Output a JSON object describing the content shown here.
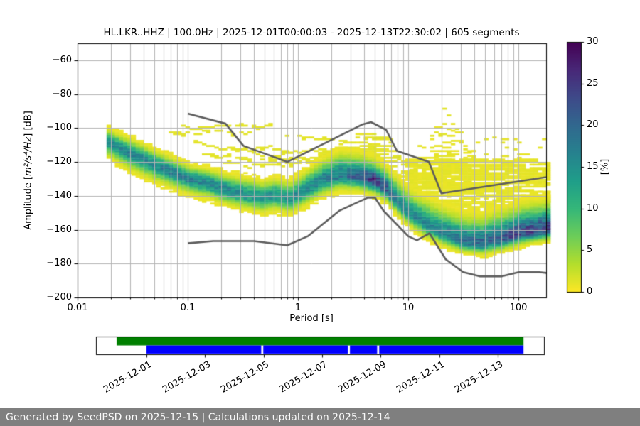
{
  "title": "HL.LKR..HHZ | 100.0Hz | 2025-12-01T00:00:03 - 2025-12-13T22:30:02 | 605 segments",
  "footer": {
    "text": "Generated by SeedPSD on 2025-12-15 | Calculations updated on 2025-12-14"
  },
  "chart_data": {
    "type": "heatmap",
    "title": "HL.LKR..HHZ | 100.0Hz | 2025-12-01T00:00:03 - 2025-12-13T22:30:02 | 605 segments",
    "xlabel": "Period [s]",
    "ylabel_prefix": "Amplitude [",
    "ylabel_math": "m²/s⁴/Hz",
    "ylabel_suffix": "] [dB]",
    "xscale": "log",
    "xlim": [
      0.01,
      179
    ],
    "ylim": [
      -200,
      -50
    ],
    "grid": true,
    "x_ticks": [
      0.01,
      0.1,
      1,
      10,
      100
    ],
    "x_tick_labels": [
      "0.01",
      "0.1",
      "1",
      "10",
      "100"
    ],
    "y_ticks": [
      -200,
      -180,
      -160,
      -140,
      -120,
      -100,
      -80,
      -60
    ],
    "y_tick_labels": [
      "−200",
      "−180",
      "−160",
      "−140",
      "−120",
      "−100",
      "−80",
      "−60"
    ],
    "colorbar": {
      "label": "[%]",
      "min": 0,
      "max": 30,
      "ticks": [
        0,
        5,
        10,
        15,
        20,
        25,
        30
      ],
      "tick_labels": [
        "0",
        "5",
        "10",
        "15",
        "20",
        "25",
        "30"
      ],
      "colormap": "viridis_r"
    },
    "bins": {
      "periods_per_octave": 8,
      "db_bin_width": 1,
      "period_min": 0.018,
      "period_max": 179
    },
    "histogram_band": {
      "comment": "main PPSD probability band: [period s, mode dB, sigma above, sigma below, peak %]",
      "points": [
        [
          0.018,
          -108.0,
          3.5,
          4.0,
          16
        ],
        [
          0.028,
          -114.5,
          4.0,
          4.5,
          16
        ],
        [
          0.045,
          -120.5,
          4.0,
          4.5,
          16
        ],
        [
          0.07,
          -126.0,
          3.8,
          4.2,
          17
        ],
        [
          0.1,
          -130.0,
          3.6,
          4.0,
          17
        ],
        [
          0.15,
          -132.5,
          3.8,
          4.0,
          17
        ],
        [
          0.22,
          -136.5,
          4.2,
          4.0,
          16
        ],
        [
          0.32,
          -139.0,
          4.5,
          4.0,
          15
        ],
        [
          0.45,
          -141.0,
          4.5,
          4.0,
          15
        ],
        [
          0.6,
          -139.5,
          4.5,
          4.0,
          15
        ],
        [
          0.8,
          -141.5,
          4.5,
          4.0,
          15
        ],
        [
          1.1,
          -136.5,
          5.0,
          4.2,
          16
        ],
        [
          1.6,
          -130.5,
          5.5,
          4.2,
          17
        ],
        [
          2.3,
          -127.5,
          6.0,
          4.0,
          18
        ],
        [
          3.4,
          -128.5,
          6.0,
          3.8,
          21
        ],
        [
          4.8,
          -131.0,
          5.5,
          3.6,
          26
        ],
        [
          6.2,
          -136.0,
          5.5,
          3.6,
          21
        ],
        [
          8.0,
          -144.5,
          6.0,
          3.6,
          17
        ],
        [
          10.5,
          -151.5,
          6.5,
          3.6,
          16
        ],
        [
          14.0,
          -157.0,
          7.0,
          3.6,
          16
        ],
        [
          20.0,
          -162.0,
          7.0,
          3.4,
          17
        ],
        [
          30.0,
          -166.5,
          7.0,
          3.2,
          19
        ],
        [
          45.0,
          -167.5,
          7.0,
          3.2,
          20
        ],
        [
          70.0,
          -165.0,
          7.5,
          3.2,
          22
        ],
        [
          110.0,
          -161.5,
          7.5,
          3.0,
          24
        ],
        [
          179.0,
          -159.5,
          7.5,
          3.0,
          24
        ]
      ]
    },
    "noise_models": {
      "color": "#5c5c5c",
      "nhnm": [
        [
          0.1,
          -91.5
        ],
        [
          0.22,
          -97.4
        ],
        [
          0.32,
          -110.5
        ],
        [
          0.8,
          -120.0
        ],
        [
          3.8,
          -98.0
        ],
        [
          4.6,
          -96.5
        ],
        [
          6.3,
          -101.0
        ],
        [
          7.9,
          -113.5
        ],
        [
          15.4,
          -120.0
        ],
        [
          20.0,
          -138.5
        ],
        [
          354.8,
          -126.0
        ]
      ],
      "nlnm": [
        [
          0.1,
          -168.0
        ],
        [
          0.17,
          -166.7
        ],
        [
          0.4,
          -166.7
        ],
        [
          0.8,
          -169.2
        ],
        [
          1.24,
          -163.7
        ],
        [
          2.4,
          -148.6
        ],
        [
          4.3,
          -141.1
        ],
        [
          5.0,
          -141.1
        ],
        [
          6.0,
          -149.0
        ],
        [
          10.0,
          -163.8
        ],
        [
          12.0,
          -166.2
        ],
        [
          15.6,
          -162.1
        ],
        [
          21.9,
          -177.5
        ],
        [
          31.6,
          -185.0
        ],
        [
          45.0,
          -187.5
        ],
        [
          70.0,
          -187.5
        ],
        [
          101.0,
          -185.0
        ],
        [
          154.0,
          -185.0
        ],
        [
          328.0,
          -187.5
        ]
      ]
    },
    "scatter_clouds": [
      {
        "name": "mid-period-cloud",
        "p_range": [
          1.2,
          11
        ],
        "top_db": -104,
        "nhnm_offset": -3,
        "band_sigma_mult": 2.2,
        "density": 0.45,
        "level_pct": 1.1
      },
      {
        "name": "storm-peak",
        "p_range": [
          8,
          65
        ],
        "apex_period": 21,
        "apex_db": -87,
        "slope_db_per_decade": 95,
        "floor_db": -136,
        "density_top": 0.12,
        "density_bottom": 0.55,
        "level_pct": 1.0
      },
      {
        "name": "long-period-cloud",
        "p_range": [
          9,
          179
        ],
        "top_db": -119,
        "band_sigma_mult": 2.0,
        "density": 0.5,
        "level_pct": 1.0
      },
      {
        "name": "long-period-sparse",
        "p_range": [
          14,
          179
        ],
        "top_db": -105,
        "bottom_db": -119,
        "density": 0.08,
        "level_pct": 1.0
      }
    ],
    "wisps": {
      "comment": "thin low-probability yellow traces above the main band: [p0, p1, start dB, drift dB]",
      "curves": [
        [
          0.07,
          0.35,
          -103,
          3
        ],
        [
          0.1,
          0.85,
          -109,
          -5
        ],
        [
          0.13,
          1.3,
          -116,
          -4
        ],
        [
          0.2,
          2.2,
          -121,
          4
        ],
        [
          0.35,
          2.8,
          -113,
          -3
        ],
        [
          0.09,
          0.55,
          -99,
          -5
        ],
        [
          0.55,
          3.2,
          -119,
          5
        ],
        [
          0.75,
          2.0,
          -106,
          2
        ]
      ],
      "level_pct": 1.2
    }
  },
  "timeline": {
    "axis_day_range": [
      -1.725,
      13.58
    ],
    "tick_days": [
      0,
      2,
      4,
      6,
      8,
      10,
      12
    ],
    "tick_labels": [
      "2025-12-01",
      "2025-12-03",
      "2025-12-05",
      "2025-12-07",
      "2025-12-09",
      "2025-12-11",
      "2025-12-13"
    ],
    "availability_segments_days": [
      [
        -1.02,
        12.88
      ]
    ],
    "coverage_segments_days": [
      [
        0.0,
        3.92
      ],
      [
        3.99,
        6.88
      ],
      [
        6.95,
        7.88
      ],
      [
        7.95,
        12.88
      ]
    ],
    "colors": {
      "availability": "#008000",
      "coverage": "#0000ff"
    }
  }
}
